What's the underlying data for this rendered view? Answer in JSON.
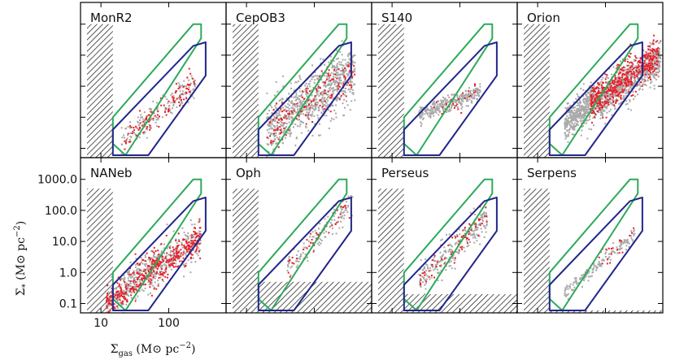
{
  "figure": {
    "xlabel": "Σgas (M⊙ pc⁻²)",
    "ylabel": "Σ* (M⊙ pc⁻²)",
    "xlabel_parts": {
      "sym": "Σ",
      "sub": "gas",
      "rest": " (M",
      "sun": "⊙",
      "unit": " pc",
      "sup": "−2",
      "close": ")"
    },
    "ylabel_parts": {
      "sym": "Σ",
      "sub": "*",
      "rest": " (M",
      "sun": "⊙",
      "unit": " pc",
      "sup": "−2",
      "close": ")"
    }
  },
  "colors": {
    "green_box": "#2eaa5a",
    "blue_box": "#22278a",
    "red_points": "#e8202a",
    "grey_points": "#a8a8a8",
    "hatch": "#222222",
    "frame": "#000000"
  },
  "chart_data": {
    "type": "scatter",
    "layout": "2x4 grid of log-log panels",
    "xlim": [
      5,
      700
    ],
    "ylim": [
      0.05,
      5000
    ],
    "x_ticks": [
      10,
      100
    ],
    "x_tick_labels": [
      "10",
      "100"
    ],
    "y_ticks": [
      0.1,
      1,
      10,
      100,
      1000
    ],
    "y_tick_labels": [
      "0.1",
      "1.0",
      "10.0",
      "100.0",
      "1000.0"
    ],
    "green_box": [
      [
        15,
        0.14
      ],
      [
        15,
        1.0
      ],
      [
        230,
        1000
      ],
      [
        300,
        1000
      ],
      [
        300,
        350
      ],
      [
        23,
        0.06
      ]
    ],
    "blue_box": [
      [
        15,
        0.4
      ],
      [
        15,
        0.06
      ],
      [
        50,
        0.06
      ],
      [
        350,
        22
      ],
      [
        350,
        260
      ],
      [
        230,
        200
      ]
    ],
    "panels": [
      {
        "name": "MonR2",
        "hatch_x": 15,
        "hatch_y": 1000,
        "floor_y": null,
        "clouds": [
          {
            "color": "grey",
            "n": 150,
            "x": [
              20,
              250
            ],
            "slope": 1.8,
            "offset": 0.35,
            "spread": 0.22
          },
          {
            "color": "red",
            "n": 100,
            "x": [
              22,
              240
            ],
            "slope": 1.8,
            "offset": 0.35,
            "spread": 0.2
          }
        ]
      },
      {
        "name": "CepOB3",
        "hatch_x": 15,
        "hatch_y": 1000,
        "floor_y": null,
        "clouds": [
          {
            "color": "grey",
            "n": 800,
            "x": [
              20,
              400
            ],
            "slope": 1.5,
            "offset": 0.7,
            "spread": 0.45
          },
          {
            "color": "red",
            "n": 150,
            "x": [
              20,
              400
            ],
            "slope": 1.5,
            "offset": 0.6,
            "spread": 0.35
          }
        ]
      },
      {
        "name": "S140",
        "hatch_x": 15,
        "hatch_y": 1000,
        "floor_y": null,
        "clouds": [
          {
            "color": "grey",
            "n": 300,
            "x": [
              25,
              200
            ],
            "slope": 0.8,
            "offset": 1.5,
            "spread": 0.12
          },
          {
            "color": "red",
            "n": 25,
            "x": [
              40,
              180
            ],
            "slope": 1.2,
            "offset": 0.9,
            "spread": 0.15
          }
        ]
      },
      {
        "name": "Orion",
        "hatch_x": 15,
        "hatch_y": 1000,
        "floor_y": null,
        "clouds": [
          {
            "color": "grey",
            "n": 1200,
            "x": [
              25,
              650
            ],
            "slope": 1.4,
            "offset": 1.0,
            "spread": 0.3
          },
          {
            "color": "red",
            "n": 500,
            "x": [
              60,
              600
            ],
            "slope": 1.6,
            "offset": 0.9,
            "spread": 0.28
          }
        ]
      },
      {
        "name": "NANeb",
        "hatch_x": 15,
        "hatch_y": 500,
        "floor_y": null,
        "clouds": [
          {
            "color": "grey",
            "n": 500,
            "x": [
              12,
              300
            ],
            "slope": 1.5,
            "offset": 0.5,
            "spread": 0.3
          },
          {
            "color": "red",
            "n": 420,
            "x": [
              12,
              300
            ],
            "slope": 1.5,
            "offset": 0.45,
            "spread": 0.28
          }
        ]
      },
      {
        "name": "Oph",
        "hatch_x": 15,
        "hatch_y": 500,
        "floor_y": 0.5,
        "clouds": [
          {
            "color": "grey",
            "n": 130,
            "x": [
              40,
              380
            ],
            "slope": 2.2,
            "offset": 0.8,
            "spread": 0.2
          },
          {
            "color": "red",
            "n": 40,
            "x": [
              40,
              380
            ],
            "slope": 2.2,
            "offset": 0.85,
            "spread": 0.2
          }
        ]
      },
      {
        "name": "Perseus",
        "hatch_x": 15,
        "hatch_y": 500,
        "floor_y": 0.2,
        "clouds": [
          {
            "color": "grey",
            "n": 220,
            "x": [
              25,
              250
            ],
            "slope": 2.0,
            "offset": 0.9,
            "spread": 0.25
          },
          {
            "color": "red",
            "n": 70,
            "x": [
              25,
              250
            ],
            "slope": 2.0,
            "offset": 0.95,
            "spread": 0.2
          }
        ]
      },
      {
        "name": "Serpens",
        "hatch_x": 15,
        "hatch_y": 500,
        "floor_y": 0.06,
        "clouds": [
          {
            "color": "grey",
            "n": 160,
            "x": [
              25,
              270
            ],
            "slope": 1.8,
            "offset": 0.35,
            "spread": 0.12
          },
          {
            "color": "red",
            "n": 20,
            "x": [
              80,
              270
            ],
            "slope": 1.8,
            "offset": 0.4,
            "spread": 0.15
          }
        ]
      }
    ]
  }
}
